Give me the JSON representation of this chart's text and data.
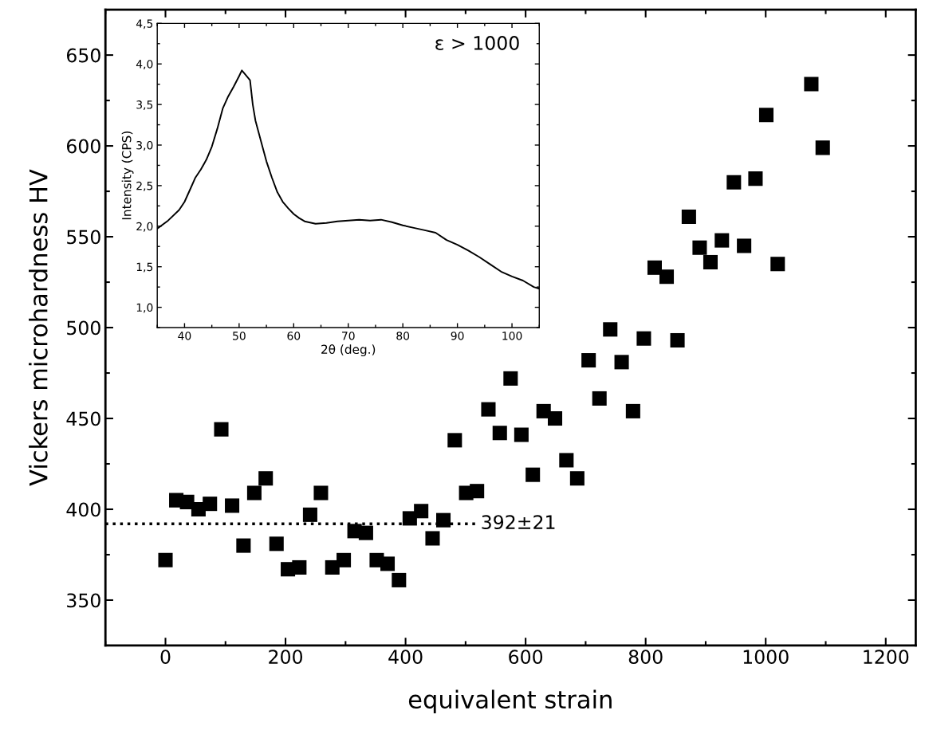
{
  "chart_data": [
    {
      "type": "scatter",
      "xlabel": "equivalent strain",
      "ylabel": "Vickers microhardness HV",
      "xlim": [
        -100,
        1250
      ],
      "xticks": [
        0,
        200,
        400,
        600,
        800,
        1000,
        1200
      ],
      "ylim": [
        325,
        675
      ],
      "yticks": [
        350,
        400,
        450,
        500,
        550,
        600,
        650
      ],
      "grid": false,
      "series": [
        {
          "type": "scatter",
          "marker": "square",
          "color": "#000000",
          "x": [
            0,
            18,
            36,
            55,
            74,
            93,
            111,
            130,
            148,
            167,
            185,
            204,
            223,
            241,
            259,
            278,
            297,
            315,
            334,
            352,
            370,
            389,
            407,
            426,
            445,
            463,
            482,
            501,
            519,
            538,
            557,
            575,
            593,
            612,
            630,
            649,
            668,
            686,
            705,
            723,
            741,
            760,
            779,
            797,
            815,
            835,
            853,
            872,
            890,
            908,
            927,
            947,
            964,
            983,
            1001,
            1020,
            1076,
            1095
          ],
          "values": [
            372,
            405,
            404,
            400,
            403,
            444,
            402,
            380,
            409,
            417,
            381,
            367,
            368,
            397,
            409,
            368,
            372,
            388,
            387,
            372,
            370,
            361,
            395,
            399,
            384,
            394,
            438,
            409,
            410,
            455,
            442,
            472,
            441,
            419,
            454,
            450,
            427,
            417,
            482,
            461,
            499,
            481,
            454,
            494,
            533,
            528,
            493,
            561,
            544,
            536,
            548,
            580,
            545,
            582,
            617,
            535,
            634,
            599
          ]
        },
        {
          "type": "line",
          "line_style": "dotted",
          "color": "#000000",
          "x": [
            -100,
            520
          ],
          "values": [
            392,
            392
          ]
        }
      ],
      "annotations": [
        {
          "text": "392±21",
          "x": 525,
          "y": 392
        }
      ]
    },
    {
      "type": "line",
      "xlabel": "2θ (deg.)",
      "ylabel": "Intensity (CPS)",
      "xlim": [
        35,
        105
      ],
      "xticks": [
        40,
        50,
        60,
        70,
        80,
        90,
        100
      ],
      "ylim": [
        0.75,
        4.5
      ],
      "yticks": [
        {
          "value": 1.0,
          "label": "1,0"
        },
        {
          "value": 1.5,
          "label": "1,5"
        },
        {
          "value": 2.0,
          "label": "2,0"
        },
        {
          "value": 2.5,
          "label": "2,5"
        },
        {
          "value": 3.0,
          "label": "3,0"
        },
        {
          "value": 3.5,
          "label": "3,5"
        },
        {
          "value": 4.0,
          "label": "4,0"
        },
        {
          "value": 4.5,
          "label": "4,5"
        }
      ],
      "grid": false,
      "series": [
        {
          "color": "#000000",
          "line_style": "solid",
          "x": [
            35,
            37,
            39,
            40,
            41,
            42,
            43,
            44,
            45,
            46,
            47,
            48,
            49,
            50,
            50.5,
            51,
            52,
            52.5,
            53,
            54,
            55,
            56,
            57,
            58,
            59,
            60,
            61,
            62,
            64,
            66,
            68,
            70,
            72,
            74,
            76,
            78,
            80,
            82,
            84,
            86,
            88,
            90,
            92,
            94,
            96,
            98,
            100,
            102,
            104,
            105
          ],
          "values": [
            1.97,
            2.07,
            2.2,
            2.3,
            2.45,
            2.6,
            2.7,
            2.82,
            2.98,
            3.2,
            3.45,
            3.6,
            3.72,
            3.85,
            3.92,
            3.88,
            3.8,
            3.5,
            3.3,
            3.05,
            2.8,
            2.6,
            2.42,
            2.3,
            2.22,
            2.15,
            2.1,
            2.06,
            2.03,
            2.04,
            2.06,
            2.07,
            2.08,
            2.07,
            2.08,
            2.05,
            2.01,
            1.98,
            1.95,
            1.92,
            1.83,
            1.77,
            1.7,
            1.62,
            1.53,
            1.44,
            1.38,
            1.33,
            1.25,
            1.23
          ]
        }
      ],
      "annotations": [
        "ε > 1000"
      ]
    }
  ]
}
